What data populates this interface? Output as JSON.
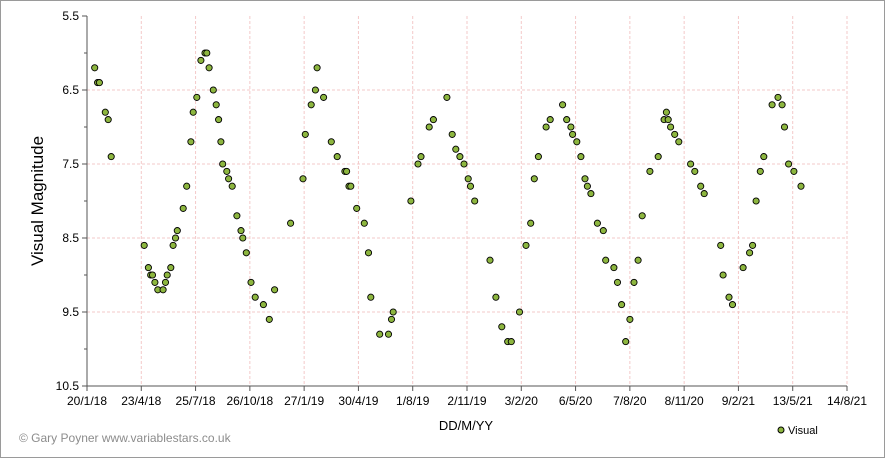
{
  "chart_data": {
    "type": "scatter",
    "title": "",
    "xlabel": "DD/M/YY",
    "ylabel": "Visual Magnitude",
    "y_inverted": true,
    "ylim": [
      5.5,
      10.5
    ],
    "y_ticks": [
      "5.5",
      "6.5",
      "7.5",
      "8.5",
      "9.5",
      "10.5"
    ],
    "x_ticks": [
      "20/1/18",
      "23/4/18",
      "25/7/18",
      "26/10/18",
      "27/1/19",
      "30/4/19",
      "1/8/19",
      "2/11/19",
      "3/2/20",
      "6/5/20",
      "7/8/20",
      "8/11/20",
      "9/2/21",
      "13/5/21",
      "14/8/21"
    ],
    "grid": true,
    "legend": "bottom-right",
    "series": [
      {
        "name": "Visual",
        "color": "#8db63f",
        "points": [
          [
            "2018-02-02",
            6.2
          ],
          [
            "2018-02-07",
            6.4
          ],
          [
            "2018-02-10",
            6.4
          ],
          [
            "2018-02-20",
            6.8
          ],
          [
            "2018-02-25",
            6.9
          ],
          [
            "2018-03-02",
            7.4
          ],
          [
            "2018-04-27",
            8.6
          ],
          [
            "2018-05-04",
            8.9
          ],
          [
            "2018-05-08",
            9.0
          ],
          [
            "2018-05-11",
            9.0
          ],
          [
            "2018-05-15",
            9.1
          ],
          [
            "2018-05-20",
            9.2
          ],
          [
            "2018-05-29",
            9.2
          ],
          [
            "2018-06-02",
            9.1
          ],
          [
            "2018-06-05",
            9.0
          ],
          [
            "2018-06-11",
            8.9
          ],
          [
            "2018-06-15",
            8.6
          ],
          [
            "2018-06-19",
            8.5
          ],
          [
            "2018-06-22",
            8.4
          ],
          [
            "2018-07-02",
            8.1
          ],
          [
            "2018-07-08",
            7.8
          ],
          [
            "2018-07-15",
            7.2
          ],
          [
            "2018-07-19",
            6.8
          ],
          [
            "2018-07-25",
            6.6
          ],
          [
            "2018-08-01",
            6.1
          ],
          [
            "2018-08-08",
            6.0
          ],
          [
            "2018-08-11",
            6.0
          ],
          [
            "2018-08-15",
            6.2
          ],
          [
            "2018-08-22",
            6.5
          ],
          [
            "2018-08-27",
            6.7
          ],
          [
            "2018-08-31",
            6.9
          ],
          [
            "2018-09-04",
            7.2
          ],
          [
            "2018-09-07",
            7.5
          ],
          [
            "2018-09-14",
            7.6
          ],
          [
            "2018-09-17",
            7.7
          ],
          [
            "2018-09-23",
            7.8
          ],
          [
            "2018-10-01",
            8.2
          ],
          [
            "2018-10-08",
            8.4
          ],
          [
            "2018-10-11",
            8.5
          ],
          [
            "2018-10-17",
            8.7
          ],
          [
            "2018-10-25",
            9.1
          ],
          [
            "2018-11-01",
            9.3
          ],
          [
            "2018-11-15",
            9.4
          ],
          [
            "2018-11-25",
            9.6
          ],
          [
            "2018-12-04",
            9.2
          ],
          [
            "2018-12-31",
            8.3
          ],
          [
            "2019-01-21",
            7.7
          ],
          [
            "2019-01-25",
            7.1
          ],
          [
            "2019-02-04",
            6.7
          ],
          [
            "2019-02-11",
            6.5
          ],
          [
            "2019-02-14",
            6.2
          ],
          [
            "2019-02-25",
            6.6
          ],
          [
            "2019-03-10",
            7.2
          ],
          [
            "2019-03-20",
            7.4
          ],
          [
            "2019-04-02",
            7.6
          ],
          [
            "2019-04-05",
            7.6
          ],
          [
            "2019-04-09",
            7.8
          ],
          [
            "2019-04-12",
            7.8
          ],
          [
            "2019-04-22",
            8.1
          ],
          [
            "2019-05-05",
            8.3
          ],
          [
            "2019-05-12",
            8.7
          ],
          [
            "2019-05-16",
            9.3
          ],
          [
            "2019-05-31",
            9.8
          ],
          [
            "2019-06-15",
            9.8
          ],
          [
            "2019-06-20",
            9.6
          ],
          [
            "2019-06-23",
            9.5
          ],
          [
            "2019-07-23",
            8.0
          ],
          [
            "2019-08-04",
            7.5
          ],
          [
            "2019-08-09",
            7.4
          ],
          [
            "2019-08-23",
            7.0
          ],
          [
            "2019-08-30",
            6.9
          ],
          [
            "2019-09-22",
            6.6
          ],
          [
            "2019-10-01",
            7.1
          ],
          [
            "2019-10-07",
            7.3
          ],
          [
            "2019-10-14",
            7.4
          ],
          [
            "2019-10-21",
            7.5
          ],
          [
            "2019-10-28",
            7.7
          ],
          [
            "2019-11-01",
            7.8
          ],
          [
            "2019-11-08",
            8.0
          ],
          [
            "2019-12-04",
            8.8
          ],
          [
            "2019-12-14",
            9.3
          ],
          [
            "2019-12-24",
            9.7
          ],
          [
            "2020-01-03",
            9.9
          ],
          [
            "2020-01-09",
            9.9
          ],
          [
            "2020-01-23",
            9.5
          ],
          [
            "2020-02-03",
            8.6
          ],
          [
            "2020-02-11",
            8.3
          ],
          [
            "2020-02-17",
            7.7
          ],
          [
            "2020-02-24",
            7.4
          ],
          [
            "2020-03-08",
            7.0
          ],
          [
            "2020-03-15",
            6.9
          ],
          [
            "2020-04-05",
            6.7
          ],
          [
            "2020-04-12",
            6.9
          ],
          [
            "2020-04-19",
            7.0
          ],
          [
            "2020-04-22",
            7.1
          ],
          [
            "2020-04-29",
            7.2
          ],
          [
            "2020-05-06",
            7.4
          ],
          [
            "2020-05-13",
            7.7
          ],
          [
            "2020-05-17",
            7.8
          ],
          [
            "2020-05-23",
            7.9
          ],
          [
            "2020-06-03",
            8.3
          ],
          [
            "2020-06-13",
            8.4
          ],
          [
            "2020-06-17",
            8.8
          ],
          [
            "2020-07-01",
            8.9
          ],
          [
            "2020-07-07",
            9.1
          ],
          [
            "2020-07-14",
            9.4
          ],
          [
            "2020-07-21",
            9.9
          ],
          [
            "2020-07-28",
            9.6
          ],
          [
            "2020-08-04",
            9.1
          ],
          [
            "2020-08-11",
            8.8
          ],
          [
            "2020-08-18",
            8.2
          ],
          [
            "2020-08-31",
            7.6
          ],
          [
            "2020-09-14",
            7.4
          ],
          [
            "2020-09-24",
            6.9
          ],
          [
            "2020-09-28",
            6.8
          ],
          [
            "2020-10-01",
            6.9
          ],
          [
            "2020-10-05",
            7.0
          ],
          [
            "2020-10-12",
            7.1
          ],
          [
            "2020-10-19",
            7.2
          ],
          [
            "2020-11-08",
            7.5
          ],
          [
            "2020-11-15",
            7.6
          ],
          [
            "2020-11-25",
            7.8
          ],
          [
            "2020-12-01",
            7.9
          ],
          [
            "2020-12-29",
            8.6
          ],
          [
            "2021-01-02",
            9.0
          ],
          [
            "2021-01-12",
            9.3
          ],
          [
            "2021-01-18",
            9.4
          ],
          [
            "2021-02-05",
            8.9
          ],
          [
            "2021-02-16",
            8.7
          ],
          [
            "2021-02-21",
            8.6
          ],
          [
            "2021-02-27",
            8.0
          ],
          [
            "2021-03-06",
            7.6
          ],
          [
            "2021-03-12",
            7.4
          ],
          [
            "2021-03-26",
            6.7
          ],
          [
            "2021-04-05",
            6.6
          ],
          [
            "2021-04-12",
            6.7
          ],
          [
            "2021-04-16",
            7.0
          ],
          [
            "2021-04-23",
            7.5
          ],
          [
            "2021-05-02",
            7.6
          ],
          [
            "2021-05-14",
            7.8
          ]
        ]
      }
    ]
  },
  "footer": {
    "copyright": "© Gary Poyner  www.variablestars.co.uk"
  }
}
